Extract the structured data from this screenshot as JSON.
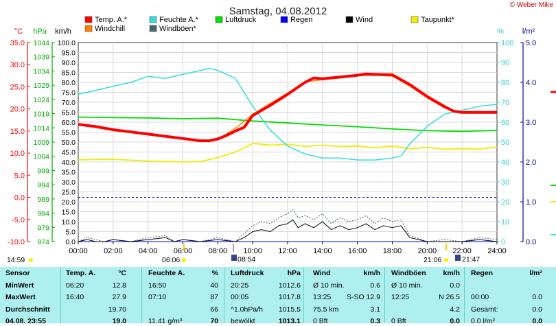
{
  "title": "Samstag, 04.08.2012",
  "brand": "© Weber Mike",
  "legend": [
    {
      "label": "Temp. A.*",
      "color": "#ff0000"
    },
    {
      "label": "Feuchte A.*",
      "color": "#33dddd"
    },
    {
      "label": "Luftdruck",
      "color": "#00dd00"
    },
    {
      "label": "Regen",
      "color": "#0000ee"
    },
    {
      "label": "Wind",
      "color": "#000000"
    },
    {
      "label": "Taupunkt*",
      "color": "#eeee00"
    },
    {
      "label": "Windchill",
      "color": "#ff8000"
    },
    {
      "label": "Windböen*",
      "color": "#446666"
    }
  ],
  "axes": {
    "temp": {
      "unit": "°C",
      "color": "#ff0000",
      "ticks": [
        "35.0",
        "30.0",
        "25.0",
        "20.0",
        "15.0",
        "10.0",
        "5.0",
        "0.0",
        "-5.0",
        "-10.0"
      ]
    },
    "pressure": {
      "unit": "hPa",
      "color": "#00aa00",
      "ticks": [
        "1044",
        "1039",
        "1034",
        "1029",
        "1024",
        "1019",
        "1014",
        "1009",
        "1004",
        "999",
        "994",
        "989",
        "984",
        "979",
        "974"
      ]
    },
    "wind": {
      "unit": "km/h",
      "color": "#000000",
      "ticks": [
        "100.0",
        "95.0",
        "90.0",
        "85.0",
        "80.0",
        "75.0",
        "70.0",
        "65.0",
        "60.0",
        "55.0",
        "50.0",
        "45.0",
        "40.0",
        "35.0",
        "30.0",
        "25.0",
        "20.0",
        "15.0",
        "10.0",
        "5.0",
        "0.0"
      ]
    },
    "humidity": {
      "unit": "%",
      "color": "#33cccc",
      "ticks": [
        "100",
        "90",
        "80",
        "70",
        "60",
        "50",
        "40",
        "30",
        "20",
        "10",
        "0"
      ]
    },
    "rain": {
      "unit": "l/m²",
      "color": "#0000aa",
      "ticks": [
        "5.0",
        "4.0",
        "3.0",
        "2.0",
        "1.0",
        "0.0"
      ]
    },
    "time": [
      "00:00",
      "02:00",
      "04:00",
      "06:00",
      "08:00",
      "10:00",
      "12:00",
      "14:00",
      "16:00",
      "18:00",
      "20:00",
      "22:00",
      "24:00"
    ]
  },
  "markers": {
    "left_time": "14:59",
    "sunrise": "06:06",
    "moonrise": "08:54",
    "sunset": "21:06",
    "moonset": "21:47"
  },
  "chart_data": {
    "type": "line",
    "x_unit": "hour of day",
    "xlim": [
      0,
      24
    ],
    "series": [
      {
        "name": "Temp. A.*",
        "unit": "°C",
        "color": "#ff0000",
        "width": 4,
        "x": [
          0,
          1,
          2,
          3,
          4,
          5,
          6,
          7,
          7.5,
          8,
          8.5,
          9,
          9.5,
          10,
          11,
          12,
          13,
          13.5,
          14,
          15,
          16,
          16.5,
          17,
          18,
          19,
          20,
          21,
          21.5,
          22,
          23,
          24
        ],
        "y": [
          16.5,
          16.0,
          15.3,
          14.8,
          14.3,
          13.8,
          13.3,
          12.8,
          12.8,
          13.2,
          14,
          15,
          15.8,
          18.5,
          20.8,
          23.3,
          26.0,
          27.0,
          26.8,
          27.2,
          27.6,
          27.9,
          27.8,
          27.7,
          25.5,
          22.8,
          20.5,
          19.5,
          19.2,
          19.2,
          19.2
        ]
      },
      {
        "name": "Windchill",
        "unit": "°C",
        "color": "#ff8000",
        "width": 1.5,
        "x": [
          0,
          2,
          4,
          6,
          7,
          8,
          9,
          10,
          11,
          12,
          13,
          14,
          15,
          16,
          17,
          18,
          19,
          20,
          21,
          22,
          23,
          24
        ],
        "y": [
          16.4,
          15.2,
          14.2,
          13.2,
          12.7,
          13.1,
          15.6,
          18.8,
          21.2,
          23.6,
          26.1,
          26.6,
          27.0,
          27.5,
          27.6,
          27.4,
          25.2,
          22.5,
          20.2,
          19.1,
          19.1,
          19.1
        ]
      },
      {
        "name": "Feuchte A.*",
        "unit": "%",
        "color": "#33dddd",
        "width": 1.5,
        "x": [
          0,
          1,
          2,
          3,
          4,
          5,
          6,
          7,
          7.5,
          8,
          9,
          10,
          11,
          12,
          13,
          14,
          15,
          16,
          17,
          18,
          18.5,
          19,
          20,
          21,
          22,
          23,
          24
        ],
        "y": [
          74,
          76,
          78,
          80,
          83,
          82,
          84,
          86,
          87,
          86,
          82,
          68,
          56,
          48,
          44,
          42,
          42,
          41,
          41,
          42,
          43,
          49,
          58,
          64,
          66,
          68,
          69
        ]
      },
      {
        "name": "Luftdruck",
        "unit": "hPa",
        "color": "#00dd00",
        "width": 1.8,
        "x": [
          0,
          2,
          4,
          6,
          8,
          10,
          12,
          14,
          16,
          18,
          20,
          22,
          24
        ],
        "y": [
          1017.8,
          1017.6,
          1017.5,
          1017.2,
          1017.4,
          1016.4,
          1015.7,
          1015.0,
          1014.4,
          1013.6,
          1013.0,
          1012.8,
          1013.1
        ]
      },
      {
        "name": "Taupunkt*",
        "unit": "°C",
        "color": "#eeee00",
        "width": 1.8,
        "x": [
          0,
          2,
          4,
          6,
          7,
          8,
          9,
          10,
          11,
          12,
          13,
          14,
          15,
          16,
          17,
          18,
          19,
          20,
          21,
          22,
          23,
          24
        ],
        "y": [
          8.5,
          8.6,
          8.2,
          8.0,
          8.1,
          9.0,
          10.2,
          12.2,
          11.8,
          12.0,
          11.5,
          11.8,
          11.5,
          11.6,
          11.2,
          11.6,
          11.0,
          11.3,
          10.9,
          11.0,
          10.9,
          11.4
        ]
      },
      {
        "name": "Windböen*",
        "unit": "km/h",
        "color": "#446666",
        "width": 1,
        "dashed": true,
        "x": [
          0,
          0.5,
          1,
          1.5,
          2,
          3,
          4,
          5,
          5.5,
          6,
          7,
          8,
          9,
          9.5,
          10,
          10.5,
          11,
          11.5,
          12,
          12.3,
          12.6,
          13,
          13.5,
          14,
          14.5,
          15,
          15.5,
          16,
          16.5,
          17,
          17.5,
          18,
          18.5,
          19,
          20,
          21,
          22,
          23,
          24
        ],
        "y": [
          0,
          2,
          1,
          0,
          1,
          0,
          2,
          3,
          0,
          1,
          0,
          2,
          0,
          4,
          8,
          10,
          9,
          12,
          14,
          16,
          12,
          13,
          11,
          14,
          9,
          12,
          10,
          11,
          13,
          9,
          12,
          10,
          11,
          3,
          0,
          1,
          0,
          2,
          1
        ]
      },
      {
        "name": "Wind",
        "unit": "km/h",
        "color": "#000000",
        "width": 1,
        "x": [
          0,
          0.5,
          1,
          1.5,
          2,
          3,
          4,
          5,
          5.5,
          6,
          7,
          8,
          9,
          9.5,
          10,
          10.5,
          11,
          11.5,
          12,
          12.3,
          12.6,
          13,
          13.5,
          14,
          14.5,
          15,
          15.5,
          16,
          16.5,
          17,
          17.5,
          18,
          18.5,
          19,
          20,
          21,
          22,
          23,
          24
        ],
        "y": [
          0,
          1,
          0,
          0,
          1,
          0,
          1,
          2,
          0,
          1,
          0,
          1,
          0,
          2,
          5,
          6,
          5,
          8,
          9,
          11,
          7,
          9,
          7,
          10,
          6,
          8,
          6,
          7,
          9,
          6,
          8,
          7,
          8,
          2,
          0,
          0,
          0,
          1,
          0
        ]
      },
      {
        "name": "Regen",
        "unit": "l/m²",
        "color": "#0000ee",
        "width": 1,
        "x": [
          0,
          24
        ],
        "y": [
          0,
          0
        ]
      }
    ]
  },
  "table": {
    "headers": [
      "Sensor",
      "Temp. A.",
      "°C",
      "Feuchte A.",
      "%",
      "Luftdruck",
      "hPa",
      "Wind",
      "km/h",
      "Windböen",
      "km/h",
      "Regen",
      "l/m²"
    ],
    "rows": [
      {
        "label": "MinWert",
        "c": [
          "06:20",
          "12.8",
          "16:50",
          "40",
          "20:25",
          "1012.6",
          "Ø 10 min.",
          "0.6",
          "Ø 10 min.",
          "0.0",
          "",
          ""
        ]
      },
      {
        "label": "MaxWert",
        "c": [
          "16:40",
          "27.9",
          "07:10",
          "87",
          "00:05",
          "1017.8",
          "13:25",
          "S-SO 12.9",
          "12:25",
          "N 26.5",
          "00:00",
          "0.0"
        ]
      },
      {
        "label": "Durchschnitt",
        "c": [
          "",
          "19.70",
          "",
          "66",
          "^1.0hPa/h",
          "1015.5",
          "75.5 km",
          "3.1",
          "",
          "4.2",
          "Gesamt:",
          "0.0"
        ]
      },
      {
        "label": "04.08. 23:55",
        "c": [
          "",
          "19.0",
          "11.41 g/m³",
          "70",
          "bewölkt",
          "1013.1",
          "0 Bft",
          "0.3",
          "0 Bft",
          "0.0",
          "0.0 l/m²",
          "0.0"
        ]
      }
    ]
  }
}
